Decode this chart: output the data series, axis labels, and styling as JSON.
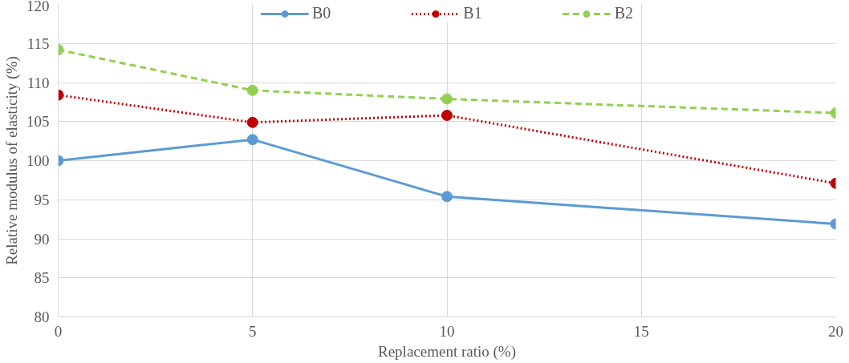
{
  "chart_data": {
    "type": "line",
    "xlabel": "Replacement ratio (%)",
    "ylabel": "Relative modulus of elasticity (%)",
    "x": [
      0,
      5,
      10,
      20
    ],
    "series": [
      {
        "name": "B0",
        "color": "#5b9bd5",
        "line_style": "solid",
        "values": [
          100,
          102.7,
          95.4,
          91.9
        ]
      },
      {
        "name": "B1",
        "color": "#c00000",
        "line_style": "dotted",
        "values": [
          108.4,
          104.9,
          105.8,
          97.1
        ]
      },
      {
        "name": "B2",
        "color": "#92d050",
        "line_style": "dashed",
        "values": [
          114.2,
          109,
          107.9,
          106.1
        ]
      }
    ],
    "xlim": [
      0,
      20
    ],
    "xticks": [
      0,
      5,
      10,
      15,
      20
    ],
    "ylim": [
      80,
      120
    ],
    "yticks": [
      80,
      85,
      90,
      95,
      100,
      105,
      110,
      115,
      120
    ],
    "grid": true,
    "legend": "top",
    "marker": "circle"
  }
}
